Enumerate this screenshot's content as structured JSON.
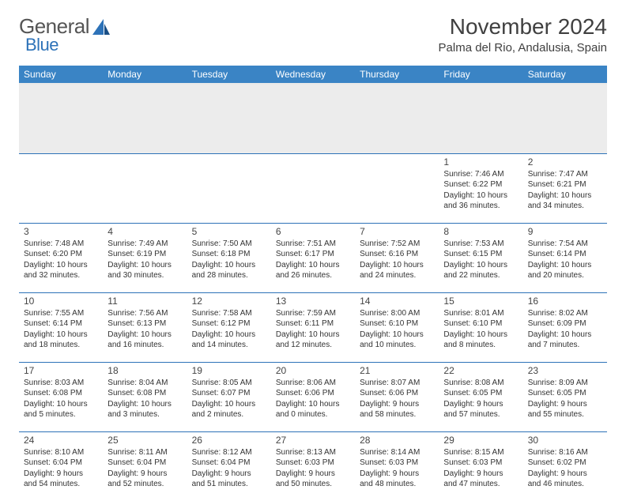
{
  "brand": {
    "part1": "General",
    "part2": "Blue"
  },
  "title": "November 2024",
  "location": "Palma del Rio, Andalusia, Spain",
  "colors": {
    "header_bg": "#3a84c5",
    "header_text": "#ffffff",
    "row_border": "#2d72b8",
    "spacer_bg": "#ececec",
    "page_bg": "#ffffff",
    "text": "#333333",
    "brand_grey": "#555555",
    "brand_blue": "#2d72b8"
  },
  "dayHeaders": [
    "Sunday",
    "Monday",
    "Tuesday",
    "Wednesday",
    "Thursday",
    "Friday",
    "Saturday"
  ],
  "calendar": {
    "startWeekday": 5,
    "daysInMonth": 30
  },
  "days": {
    "1": {
      "sunrise": "7:46 AM",
      "sunset": "6:22 PM",
      "daylight": "10 hours and 36 minutes."
    },
    "2": {
      "sunrise": "7:47 AM",
      "sunset": "6:21 PM",
      "daylight": "10 hours and 34 minutes."
    },
    "3": {
      "sunrise": "7:48 AM",
      "sunset": "6:20 PM",
      "daylight": "10 hours and 32 minutes."
    },
    "4": {
      "sunrise": "7:49 AM",
      "sunset": "6:19 PM",
      "daylight": "10 hours and 30 minutes."
    },
    "5": {
      "sunrise": "7:50 AM",
      "sunset": "6:18 PM",
      "daylight": "10 hours and 28 minutes."
    },
    "6": {
      "sunrise": "7:51 AM",
      "sunset": "6:17 PM",
      "daylight": "10 hours and 26 minutes."
    },
    "7": {
      "sunrise": "7:52 AM",
      "sunset": "6:16 PM",
      "daylight": "10 hours and 24 minutes."
    },
    "8": {
      "sunrise": "7:53 AM",
      "sunset": "6:15 PM",
      "daylight": "10 hours and 22 minutes."
    },
    "9": {
      "sunrise": "7:54 AM",
      "sunset": "6:14 PM",
      "daylight": "10 hours and 20 minutes."
    },
    "10": {
      "sunrise": "7:55 AM",
      "sunset": "6:14 PM",
      "daylight": "10 hours and 18 minutes."
    },
    "11": {
      "sunrise": "7:56 AM",
      "sunset": "6:13 PM",
      "daylight": "10 hours and 16 minutes."
    },
    "12": {
      "sunrise": "7:58 AM",
      "sunset": "6:12 PM",
      "daylight": "10 hours and 14 minutes."
    },
    "13": {
      "sunrise": "7:59 AM",
      "sunset": "6:11 PM",
      "daylight": "10 hours and 12 minutes."
    },
    "14": {
      "sunrise": "8:00 AM",
      "sunset": "6:10 PM",
      "daylight": "10 hours and 10 minutes."
    },
    "15": {
      "sunrise": "8:01 AM",
      "sunset": "6:10 PM",
      "daylight": "10 hours and 8 minutes."
    },
    "16": {
      "sunrise": "8:02 AM",
      "sunset": "6:09 PM",
      "daylight": "10 hours and 7 minutes."
    },
    "17": {
      "sunrise": "8:03 AM",
      "sunset": "6:08 PM",
      "daylight": "10 hours and 5 minutes."
    },
    "18": {
      "sunrise": "8:04 AM",
      "sunset": "6:08 PM",
      "daylight": "10 hours and 3 minutes."
    },
    "19": {
      "sunrise": "8:05 AM",
      "sunset": "6:07 PM",
      "daylight": "10 hours and 2 minutes."
    },
    "20": {
      "sunrise": "8:06 AM",
      "sunset": "6:06 PM",
      "daylight": "10 hours and 0 minutes."
    },
    "21": {
      "sunrise": "8:07 AM",
      "sunset": "6:06 PM",
      "daylight": "9 hours and 58 minutes."
    },
    "22": {
      "sunrise": "8:08 AM",
      "sunset": "6:05 PM",
      "daylight": "9 hours and 57 minutes."
    },
    "23": {
      "sunrise": "8:09 AM",
      "sunset": "6:05 PM",
      "daylight": "9 hours and 55 minutes."
    },
    "24": {
      "sunrise": "8:10 AM",
      "sunset": "6:04 PM",
      "daylight": "9 hours and 54 minutes."
    },
    "25": {
      "sunrise": "8:11 AM",
      "sunset": "6:04 PM",
      "daylight": "9 hours and 52 minutes."
    },
    "26": {
      "sunrise": "8:12 AM",
      "sunset": "6:04 PM",
      "daylight": "9 hours and 51 minutes."
    },
    "27": {
      "sunrise": "8:13 AM",
      "sunset": "6:03 PM",
      "daylight": "9 hours and 50 minutes."
    },
    "28": {
      "sunrise": "8:14 AM",
      "sunset": "6:03 PM",
      "daylight": "9 hours and 48 minutes."
    },
    "29": {
      "sunrise": "8:15 AM",
      "sunset": "6:03 PM",
      "daylight": "9 hours and 47 minutes."
    },
    "30": {
      "sunrise": "8:16 AM",
      "sunset": "6:02 PM",
      "daylight": "9 hours and 46 minutes."
    }
  },
  "labels": {
    "sunrise": "Sunrise:",
    "sunset": "Sunset:",
    "daylight": "Daylight:"
  }
}
